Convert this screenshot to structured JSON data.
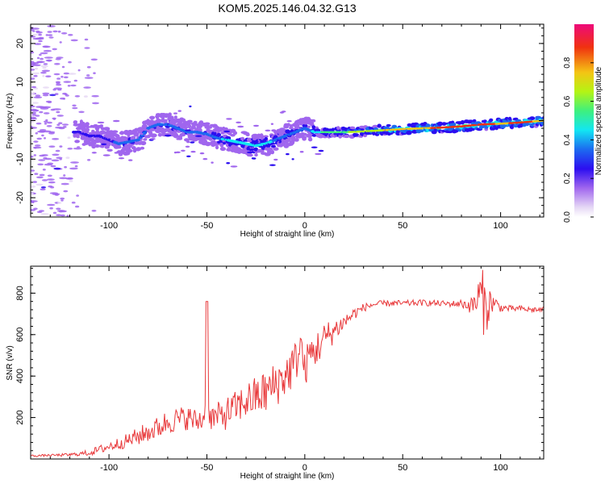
{
  "figure_title": "KOM5.2025.146.04.32.G13",
  "colors": {
    "snr_line": "#e8383a",
    "colormap": [
      "#e6d8f5",
      "#a066ee",
      "#2c0ef0",
      "#1c6af0",
      "#12e6f2",
      "#3ef07e",
      "#b4f414",
      "#f4c414",
      "#f03210",
      "#ee0a7a"
    ]
  },
  "chart_data": [
    {
      "type": "heatmap",
      "xlabel": "Height of straight line (km)",
      "ylabel": "Frequency (Hz)",
      "xlim": [
        -140,
        122
      ],
      "ylim": [
        -25,
        25
      ],
      "xticks": [
        -100,
        -50,
        0,
        50,
        100
      ],
      "yticks": [
        -20,
        -10,
        0,
        10,
        20
      ],
      "grid": false,
      "colorbar": {
        "label": "Normalized spectral amplitude",
        "range": [
          0,
          1
        ],
        "ticks": [
          0.0,
          0.2,
          0.4,
          0.6,
          0.8
        ]
      },
      "ridge": {
        "x": [
          -115,
          -110,
          -105,
          -100,
          -95,
          -90,
          -85,
          -80,
          -75,
          -70,
          -65,
          -60,
          -55,
          -50,
          -45,
          -40,
          -35,
          -30,
          -25,
          -20,
          -15,
          -10,
          -5,
          0,
          5,
          10,
          20,
          30,
          40,
          50,
          60,
          70,
          80,
          90,
          100,
          110,
          122
        ],
        "frequency": [
          -3,
          -4,
          -4,
          -5,
          -6,
          -5.5,
          -5,
          -2,
          -1,
          -1,
          -2,
          -3,
          -3,
          -3.5,
          -4.5,
          -5,
          -5.5,
          -6,
          -6.5,
          -6,
          -5,
          -4,
          -3,
          -2,
          -3,
          -3,
          -3,
          -2.8,
          -2.5,
          -2.2,
          -2,
          -1.8,
          -1.5,
          -1,
          -0.8,
          -0.5,
          0
        ],
        "amplitude": [
          0.2,
          0.22,
          0.25,
          0.25,
          0.3,
          0.32,
          0.3,
          0.3,
          0.32,
          0.35,
          0.3,
          0.3,
          0.3,
          0.32,
          0.38,
          0.4,
          0.42,
          0.42,
          0.44,
          0.42,
          0.38,
          0.35,
          0.35,
          0.32,
          0.42,
          0.52,
          0.6,
          0.65,
          0.72,
          0.78,
          0.82,
          0.85,
          0.9,
          0.88,
          0.82,
          0.85,
          0.82
        ]
      }
    },
    {
      "type": "line",
      "xlabel": "Height of straight line (km)",
      "ylabel": "SNR (v/v)",
      "xlim": [
        -140,
        122
      ],
      "ylim": [
        0,
        930
      ],
      "xticks": [
        -100,
        -50,
        0,
        50,
        100
      ],
      "yticks": [
        200,
        400,
        600,
        800
      ],
      "grid": false,
      "series": [
        {
          "x": [
            -140,
            -130,
            -120,
            -115,
            -110,
            -105,
            -100,
            -95,
            -90,
            -85,
            -80,
            -75,
            -70,
            -65,
            -60,
            -55,
            -51,
            -50,
            -49,
            -45,
            -40,
            -35,
            -30,
            -25,
            -20,
            -15,
            -10,
            -5,
            -2,
            0,
            2,
            5,
            10,
            15,
            20,
            25,
            30,
            35,
            40,
            45,
            50,
            55,
            60,
            65,
            70,
            75,
            80,
            85,
            88,
            90,
            92,
            95,
            100,
            105,
            110,
            115,
            122
          ],
          "y": [
            15,
            18,
            20,
            25,
            30,
            45,
            60,
            75,
            90,
            110,
            130,
            150,
            180,
            190,
            200,
            180,
            200,
            760,
            200,
            200,
            220,
            250,
            280,
            300,
            320,
            360,
            400,
            460,
            560,
            420,
            500,
            520,
            580,
            620,
            660,
            700,
            730,
            745,
            750,
            752,
            750,
            752,
            754,
            752,
            750,
            748,
            750,
            740,
            760,
            800,
            720,
            760,
            730,
            725,
            725,
            720,
            720
          ],
          "noise": [
            5,
            5,
            8,
            10,
            15,
            20,
            25,
            30,
            35,
            45,
            50,
            55,
            60,
            60,
            60,
            60,
            60,
            0,
            60,
            70,
            80,
            80,
            90,
            100,
            110,
            110,
            110,
            110,
            100,
            90,
            90,
            90,
            80,
            60,
            40,
            30,
            20,
            15,
            15,
            15,
            15,
            15,
            15,
            15,
            15,
            15,
            20,
            40,
            80,
            150,
            150,
            60,
            20,
            15,
            15,
            15,
            15
          ]
        }
      ]
    }
  ]
}
